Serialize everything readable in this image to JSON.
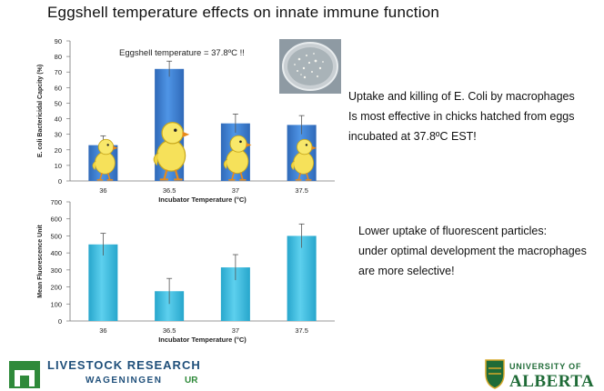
{
  "slide": {
    "title": "Eggshell temperature effects on innate immune function",
    "annotation": "Eggshell temperature = 37.8ºC !!",
    "note1": [
      "Uptake and killing of E. Coli by macrophages",
      "Is most effective in chicks hatched from eggs",
      "incubated at 37.8ºC EST!"
    ],
    "note2": [
      "Lower uptake of fluorescent particles:",
      "under optimal development the macrophages",
      "are more selective!"
    ]
  },
  "logos": {
    "left_line1": "LIVESTOCK RESEARCH",
    "left_line2a": "WAGENINGEN",
    "left_line2b": "UR",
    "right_line1": "UNIVERSITY OF",
    "right_line2": "ALBERTA"
  },
  "colors": {
    "bar_top": "#3b7fd1",
    "bar_bottom": "#34b4d8",
    "accent_green": "#2f8a3a",
    "alberta_green": "#1f6b37",
    "alberta_gold": "#d6a829"
  },
  "chart_data": [
    {
      "type": "bar",
      "categories": [
        "36",
        "36.5",
        "37",
        "37.5"
      ],
      "values": [
        23,
        72,
        37,
        36
      ],
      "error": [
        6,
        5,
        6,
        6
      ],
      "xlabel": "Incubator Temperature (°C)",
      "ylabel": "E. coli Bactericidal Capcity (%)",
      "ylim": [
        0,
        90
      ],
      "yticks": [
        0,
        10,
        20,
        30,
        40,
        50,
        60,
        70,
        80,
        90
      ]
    },
    {
      "type": "bar",
      "categories": [
        "36",
        "36.5",
        "37",
        "37.5"
      ],
      "values": [
        450,
        175,
        315,
        500
      ],
      "error": [
        65,
        75,
        75,
        70
      ],
      "xlabel": "Incubator Temperature (°C)",
      "ylabel": "Mean Fluorescence Unit",
      "ylim": [
        0,
        700
      ],
      "yticks": [
        0,
        100,
        200,
        300,
        400,
        500,
        600,
        700
      ]
    }
  ]
}
